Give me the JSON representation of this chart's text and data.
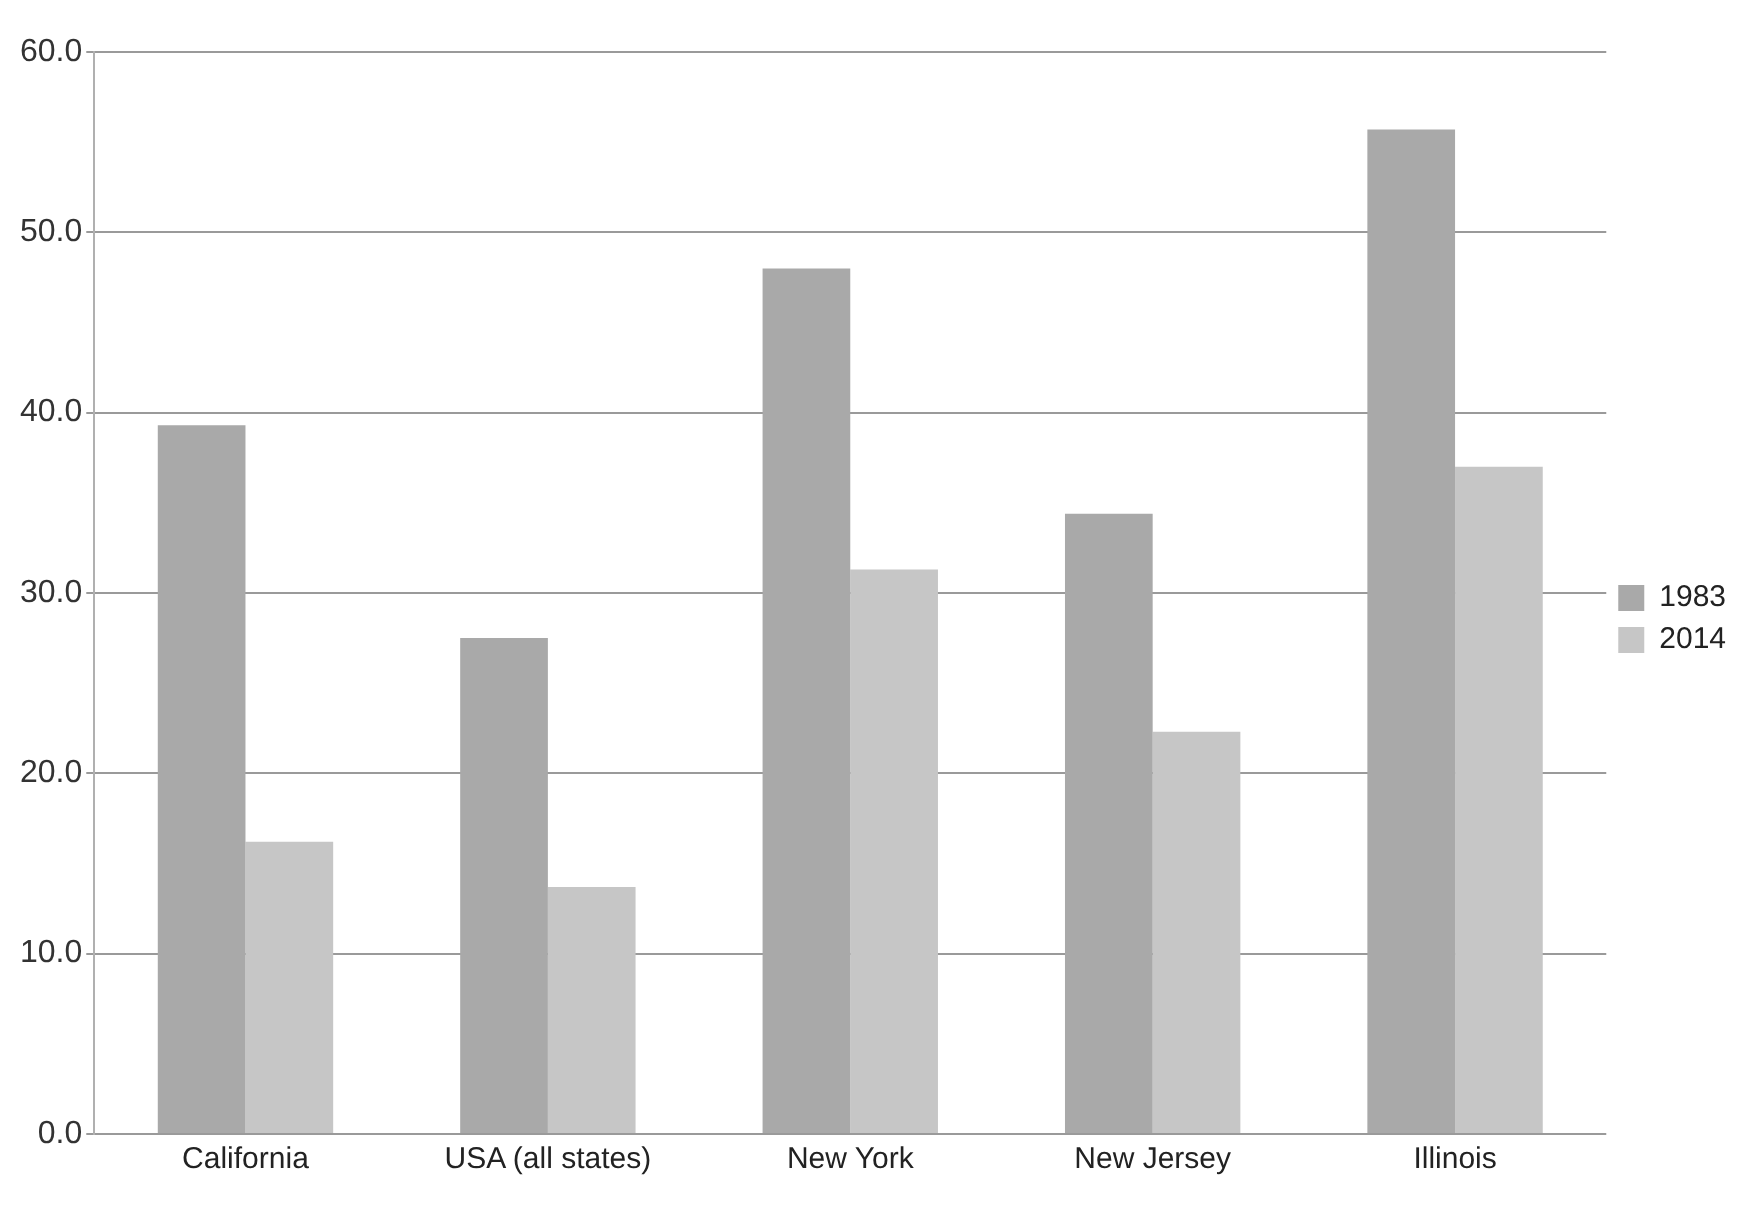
{
  "chart_data": {
    "type": "bar",
    "categories": [
      "California",
      "USA (all states)",
      "New York",
      "New Jersey",
      "Illinois"
    ],
    "series": [
      {
        "name": "1983",
        "color": "#a9a9a9",
        "values": [
          39.3,
          27.5,
          48.0,
          34.4,
          55.7
        ]
      },
      {
        "name": "2014",
        "color": "#c6c6c6",
        "values": [
          16.2,
          13.7,
          31.3,
          22.3,
          37.0
        ]
      }
    ],
    "ylim": [
      0,
      60
    ],
    "yticks": [
      {
        "value": 0,
        "label": "0.0"
      },
      {
        "value": 10,
        "label": "10.0"
      },
      {
        "value": 20,
        "label": "20.0"
      },
      {
        "value": 30,
        "label": "30.0"
      },
      {
        "value": 40,
        "label": "40.0"
      },
      {
        "value": 50,
        "label": "50.0"
      },
      {
        "value": 60,
        "label": "60.0"
      }
    ],
    "grid": "y",
    "legend": "right"
  }
}
